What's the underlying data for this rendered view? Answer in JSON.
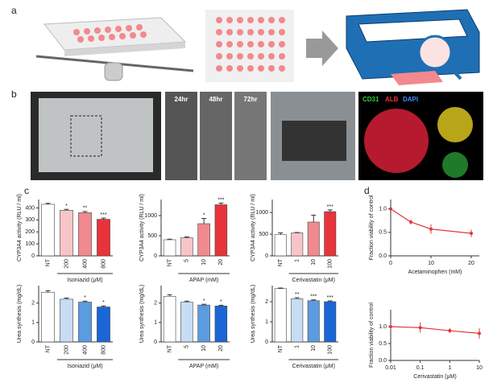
{
  "panels": {
    "a": "a",
    "b": "b",
    "c": "c",
    "d": "d"
  },
  "photo_labels": {
    "t24": "24hr",
    "t48": "48hr",
    "t72": "72hr",
    "cd31": "CD31",
    "alb": "ALB",
    "dapi": "DAPI"
  },
  "chart_data": [
    {
      "type": "bar",
      "ylabel": "CYP3A4 activity (RLU / ml)",
      "xlabel": "Isoniazid (μM)",
      "categories": [
        "NT",
        "200",
        "400",
        "800"
      ],
      "values": [
        430,
        380,
        360,
        305
      ],
      "errors": [
        8,
        8,
        10,
        10
      ],
      "significance": [
        null,
        "*",
        "**",
        "***"
      ],
      "colors": [
        "#ffffff",
        "#f7c5c8",
        "#f08a8e",
        "#e8333b"
      ],
      "ylim": [
        0,
        470
      ],
      "yticks": [
        0,
        100,
        200,
        300,
        400
      ]
    },
    {
      "type": "bar",
      "ylabel": "CYP3A4 activity (RLU / ml)",
      "xlabel": "APAP (mM)",
      "categories": [
        "NT",
        "5",
        "10",
        "20"
      ],
      "values": [
        400,
        450,
        800,
        1270
      ],
      "errors": [
        15,
        20,
        130,
        40
      ],
      "significance": [
        null,
        null,
        "*",
        "***"
      ],
      "colors": [
        "#ffffff",
        "#f7c5c8",
        "#f08a8e",
        "#e8333b"
      ],
      "ylim": [
        0,
        1400
      ],
      "yticks": [
        0,
        500,
        1000
      ]
    },
    {
      "type": "bar",
      "ylabel": "CYP3A4 activity (RLU / ml)",
      "xlabel": "Cerivastatin (μM)",
      "categories": [
        "NT",
        "1",
        "10",
        "100"
      ],
      "values": [
        490,
        530,
        780,
        1020
      ],
      "errors": [
        40,
        10,
        160,
        40
      ],
      "significance": [
        null,
        null,
        null,
        "***"
      ],
      "colors": [
        "#ffffff",
        "#f7c5c8",
        "#f08a8e",
        "#e8333b"
      ],
      "ylim": [
        0,
        1300
      ],
      "yticks": [
        0,
        500,
        1000
      ]
    },
    {
      "type": "bar",
      "ylabel": "Urea synthesis (mg/dL)",
      "xlabel": "Isoniazid (μM)",
      "categories": [
        "NT",
        "200",
        "400",
        "800"
      ],
      "values": [
        2.55,
        2.2,
        2.05,
        1.8
      ],
      "errors": [
        0.08,
        0.06,
        0.05,
        0.05
      ],
      "significance": [
        null,
        null,
        "*",
        "*"
      ],
      "colors": [
        "#ffffff",
        "#c8dcf3",
        "#5b9be0",
        "#1a66d6"
      ],
      "ylim": [
        0,
        2.9
      ],
      "yticks": [
        0,
        1,
        2
      ]
    },
    {
      "type": "bar",
      "ylabel": "Urea synthesis (mg/dL)",
      "xlabel": "APAP (mM)",
      "categories": [
        "NT",
        "5",
        "10",
        "20"
      ],
      "values": [
        2.35,
        2.05,
        1.9,
        1.85
      ],
      "errors": [
        0.08,
        0.05,
        0.04,
        0.04
      ],
      "significance": [
        null,
        null,
        "*",
        "*"
      ],
      "colors": [
        "#ffffff",
        "#c8dcf3",
        "#5b9be0",
        "#1a66d6"
      ],
      "ylim": [
        0,
        2.9
      ],
      "yticks": [
        0,
        1,
        2
      ]
    },
    {
      "type": "bar",
      "ylabel": "Urea synthesis (mg/dL)",
      "xlabel": "Cerivastatin (μM)",
      "categories": [
        "NT",
        "1",
        "10",
        "100"
      ],
      "values": [
        2.65,
        2.15,
        2.05,
        2.0
      ],
      "errors": [
        0.03,
        0.05,
        0.04,
        0.04
      ],
      "significance": [
        null,
        "**",
        "***",
        "***"
      ],
      "colors": [
        "#ffffff",
        "#c8dcf3",
        "#5b9be0",
        "#1a66d6"
      ],
      "ylim": [
        0,
        2.8
      ],
      "yticks": [
        0,
        1,
        2
      ]
    },
    {
      "type": "line",
      "ylabel": "Fraction viability of control",
      "xlabel": "Acetaminophen (mM)",
      "x": [
        0,
        5,
        10,
        20
      ],
      "values": [
        1.0,
        0.72,
        0.57,
        0.48
      ],
      "errors": [
        0.03,
        0.05,
        0.1,
        0.08
      ],
      "color": "#e0383e",
      "xlim": [
        0,
        22
      ],
      "xticks": [
        0,
        10,
        20
      ],
      "ylim": [
        0,
        1.2
      ],
      "yticks": [
        {
          "value": 0,
          "label": "0.0"
        },
        {
          "value": 0.5,
          "label": "0.5"
        },
        {
          "value": 1,
          "label": "1.0"
        }
      ]
    },
    {
      "type": "line",
      "ylabel": "Fraction viability of control",
      "xlabel": "Cerivastatin (μM)",
      "log_x": true,
      "x": [
        0.01,
        0.1,
        1,
        10
      ],
      "values": [
        1.0,
        0.97,
        0.88,
        0.8
      ],
      "errors": [
        0.07,
        0.15,
        0.07,
        0.15
      ],
      "color": "#e0383e",
      "xlim": [
        0.01,
        10
      ],
      "xticks": [
        0.01,
        0.1,
        1,
        10
      ],
      "ylim": [
        0,
        1.5
      ],
      "yticks": [
        {
          "value": 0,
          "label": "0.0"
        },
        {
          "value": 0.5,
          "label": "0.5"
        },
        {
          "value": 1,
          "label": "1.0"
        }
      ]
    }
  ]
}
